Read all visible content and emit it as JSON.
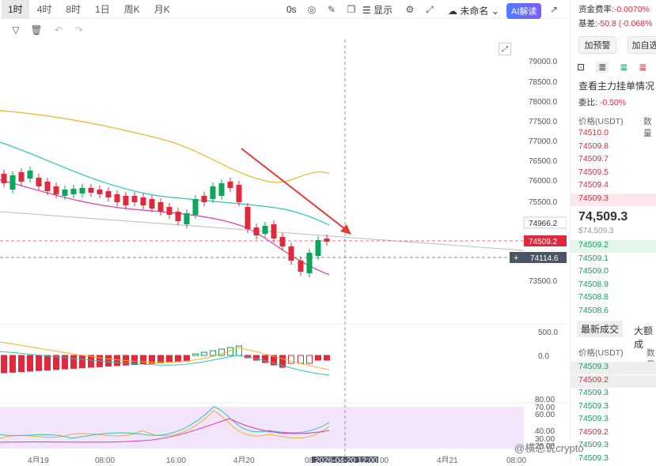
{
  "timeframes": [
    "1时",
    "4时",
    "8时",
    "1日",
    "周K",
    "月K"
  ],
  "toolbar": {
    "countdown": "0s",
    "display": "显示",
    "unnamed": "未命名",
    "ai": "AI解读"
  },
  "price_axis": [
    "79000.0",
    "78500.0",
    "78000.0",
    "77500.0",
    "77000.0",
    "76500.0",
    "76000.0",
    "75500.0",
    "73500.0"
  ],
  "tags": {
    "ma": "74966.2",
    "last": "74509.2",
    "cross": "74114.6"
  },
  "macd_axis": [
    "500.0",
    "0.0"
  ],
  "rsi_axis": [
    "80.00",
    "70.00",
    "60.00",
    "40.00",
    "30.00",
    "20.00"
  ],
  "time_axis": [
    "4月19",
    "08:00",
    "16:00",
    "4月20",
    "08",
    "2026-04-20 12:00",
    "00",
    "4月21",
    "08:00"
  ],
  "right": {
    "funding_label": "资金费率:",
    "funding_value": "-0.0070%",
    "basis_label": "基差:",
    "basis_value": "-50.8 (-0.068%",
    "btn1": "加预警",
    "btn2": "加自选",
    "orderbook_title": "查看主力挂单情况",
    "ratio_label": "委比:",
    "ratio_value": "-0.50%",
    "col_price": "价格(USDT)",
    "col_qty": "数量",
    "asks": [
      "74510.0",
      "74509.8",
      "74509.7",
      "74509.5",
      "74509.4",
      "74509.3"
    ],
    "mid_price": "74,509.3",
    "mid_sub": "$74,509.3",
    "bids": [
      "74509.2",
      "74509.1",
      "74509.0",
      "74508.9",
      "74508.8",
      "74508.6"
    ],
    "tab_latest": "最新成交",
    "tab_big": "大额成",
    "col_price2": "价格(USDT)",
    "col_qty2": "数量",
    "trades": [
      {
        "p": "74509.3",
        "c": "grn"
      },
      {
        "p": "74509.2",
        "c": "red"
      },
      {
        "p": "74509.3",
        "c": "grn"
      },
      {
        "p": "74509.3",
        "c": "grn"
      },
      {
        "p": "74509.3",
        "c": "grn"
      },
      {
        "p": "74509.2",
        "c": "red"
      },
      {
        "p": "74509.3",
        "c": "grn"
      },
      {
        "p": "74509.3",
        "c": "grn"
      }
    ]
  },
  "watermark": "@横总说crypto"
}
